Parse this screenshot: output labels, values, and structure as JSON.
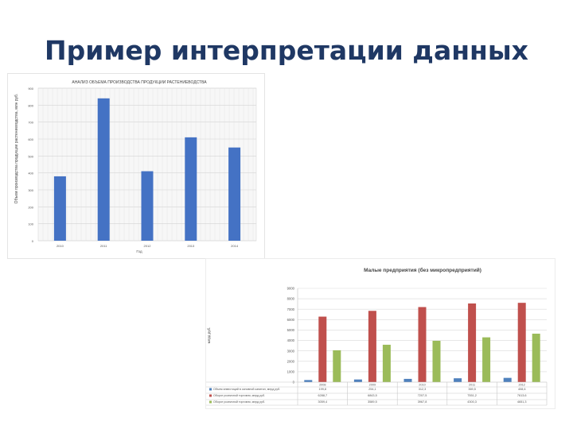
{
  "slide": {
    "title": "Пример интерпретации данных"
  },
  "chart_data": [
    {
      "type": "bar",
      "title": "АНАЛИЗ ОБЪЕМА ПРОИЗВОДСТВА ПРОДУКЦИИ РАСТЕНИЕВОДСТВА",
      "xlabel": "Год",
      "ylabel": "Объем производства продукции растениеводства, млн руб.",
      "categories": [
        "2010",
        "2011",
        "2012",
        "2013",
        "2014"
      ],
      "values": [
        380,
        840,
        410,
        610,
        550
      ],
      "ylim": [
        0,
        900
      ],
      "yticks": [
        0,
        100,
        200,
        300,
        400,
        500,
        600,
        700,
        800,
        900
      ],
      "grid": true,
      "colors": [
        "#4472c4"
      ]
    },
    {
      "type": "bar",
      "title": "Малые предприятия (без микропредприятий)",
      "ylabel": "млрд руб.",
      "categories": [
        "2008",
        "2009",
        "2010",
        "2011",
        "2012"
      ],
      "ylim": [
        0,
        9000
      ],
      "yticks": [
        0,
        1000,
        2000,
        3000,
        4000,
        5000,
        6000,
        7000,
        8000,
        9000
      ],
      "grid": true,
      "legend": "bottom-table",
      "series": [
        {
          "name": "Объем инвестиций в основной капитал, млрд руб.",
          "color": "#4f81bd",
          "values": [
            199.8,
            254.1,
            312.3,
            369.5,
            408.6
          ],
          "labels": [
            "199,8",
            "254,1",
            "312,3",
            "369,5",
            "408,6"
          ]
        },
        {
          "name": "Оборот розничной торговли, млрд руб.",
          "color": "#c0504d",
          "values": [
            6288.7,
            6843.5,
            7207.5,
            7551.2,
            7613.6
          ],
          "labels": [
            "6288,7",
            "6843,5",
            "7207,5",
            "7551,2",
            "7613,6"
          ]
        },
        {
          "name": "Оборот розничной торговли, млрд руб.",
          "color": "#9bbb59",
          "values": [
            3059.4,
            3589.5,
            3967.8,
            4300.3,
            4651.3
          ],
          "labels": [
            "3059,4",
            "3589,5",
            "3967,8",
            "4300,3",
            "4651,3"
          ]
        }
      ]
    }
  ]
}
